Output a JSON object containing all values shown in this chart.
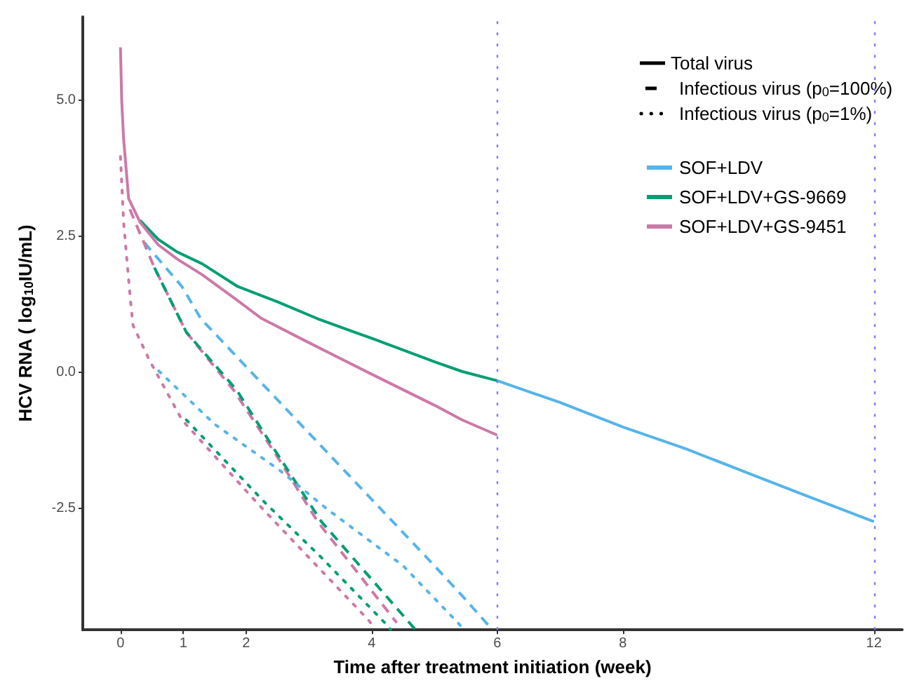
{
  "chart_data": {
    "type": "line",
    "xlabel": "Time after treatment initiation (week)",
    "ylabel": "HCV RNA ( log$_{10}$IU/mL)",
    "xlim": [
      -0.6,
      12.45
    ],
    "xticks": [
      0,
      1,
      2,
      4,
      6,
      8,
      12
    ],
    "ylim": [
      -4.73,
      6.54
    ],
    "yticks": [
      {
        "value": 5,
        "label": "5.0"
      },
      {
        "value": 2.5,
        "label": "2.5"
      },
      {
        "value": 0,
        "label": "0.0"
      },
      {
        "value": -2.5,
        "label": "-2.5"
      }
    ],
    "grid": false,
    "legend": "top right",
    "marker": "none",
    "annotations": [
      "Total virus",
      "Infectious virus (p$_{0}$=100%)",
      "Infectious virus (p$_{0}$=1%)"
    ],
    "ref_lines": [
      {
        "axis": "x",
        "value": 6,
        "label": null,
        "color": "#7b7bff",
        "line_style": "dotted"
      },
      {
        "axis": "x",
        "value": 12,
        "label": null,
        "color": "#7b7bff",
        "line_style": "dotted"
      }
    ],
    "series": [
      {
        "name": "SOF+LDV",
        "color": "#56b4e9",
        "line_style": "solid",
        "x": [
          6,
          7,
          8,
          9,
          10,
          11,
          12
        ],
        "values": [
          -0.15,
          -0.55,
          -1.0,
          -1.4,
          -1.85,
          -2.3,
          -2.74
        ]
      },
      {
        "name": "SOF+LDV+GS-9669",
        "color": "#009e73",
        "line_style": "solid",
        "x": [
          0.31,
          0.6,
          0.9,
          1.3,
          1.87,
          2.5,
          3.14,
          4,
          5,
          5.44,
          6
        ],
        "values": [
          2.8,
          2.45,
          2.22,
          2.0,
          1.58,
          1.3,
          0.99,
          0.63,
          0.2,
          0.02,
          -0.15
        ]
      },
      {
        "name": "SOF+LDV+GS-9451",
        "color": "#cc79a7",
        "line_style": "solid",
        "x": [
          0,
          0.02,
          0.05,
          0.13,
          0.31,
          0.6,
          0.9,
          1.3,
          1.87,
          2.24,
          3,
          4,
          5,
          5.44,
          6
        ],
        "values": [
          5.98,
          5.0,
          4.3,
          3.2,
          2.77,
          2.35,
          2.09,
          1.8,
          1.32,
          1.0,
          0.55,
          -0.03,
          -0.6,
          -0.87,
          -1.15
        ]
      },
      {
        "color": "#56b4e9",
        "line_style": "dashed",
        "x": [
          0.38,
          0.98,
          1.28,
          2,
          3,
          4,
          5,
          5.44,
          5.87
        ],
        "values": [
          2.39,
          1.58,
          0.99,
          0.11,
          -1.11,
          -2.33,
          -3.55,
          -4.1,
          -4.66
        ]
      },
      {
        "color": "#cc79a7",
        "line_style": "dashed",
        "x": [
          0.15,
          0.54,
          1.05,
          1.8,
          2.5,
          3.14,
          4.4
        ],
        "values": [
          3.0,
          1.93,
          0.74,
          -0.32,
          -1.55,
          -2.74,
          -4.6
        ]
      },
      {
        "color": "#009e73",
        "line_style": "dashed",
        "x": [
          0.54,
          1.05,
          1.85,
          2.5,
          3.2,
          4.7
        ],
        "values": [
          1.93,
          0.74,
          -0.32,
          -1.5,
          -2.74,
          -4.73
        ]
      },
      {
        "color": "#56b4e9",
        "line_style": "dotted",
        "x": [
          0.61,
          1.5,
          2.54,
          3.28,
          4.5,
          5.44
        ],
        "values": [
          0.03,
          -0.95,
          -1.8,
          -2.5,
          -3.55,
          -4.68
        ]
      },
      {
        "color": "#009e73",
        "line_style": "dotted",
        "x": [
          1.05,
          2.3,
          3.2,
          4.21,
          4.3
        ],
        "values": [
          -0.87,
          -2.39,
          -3.4,
          -4.6,
          -4.72
        ]
      },
      {
        "color": "#cc79a7",
        "line_style": "dotted",
        "x": [
          0,
          0.05,
          0.16,
          0.2,
          0.46,
          0.98,
          2.17,
          3.0,
          3.95,
          4.05
        ],
        "values": [
          3.97,
          2.77,
          1.32,
          0.87,
          0.23,
          -0.87,
          -2.39,
          -3.4,
          -4.55,
          -4.7
        ]
      }
    ]
  }
}
